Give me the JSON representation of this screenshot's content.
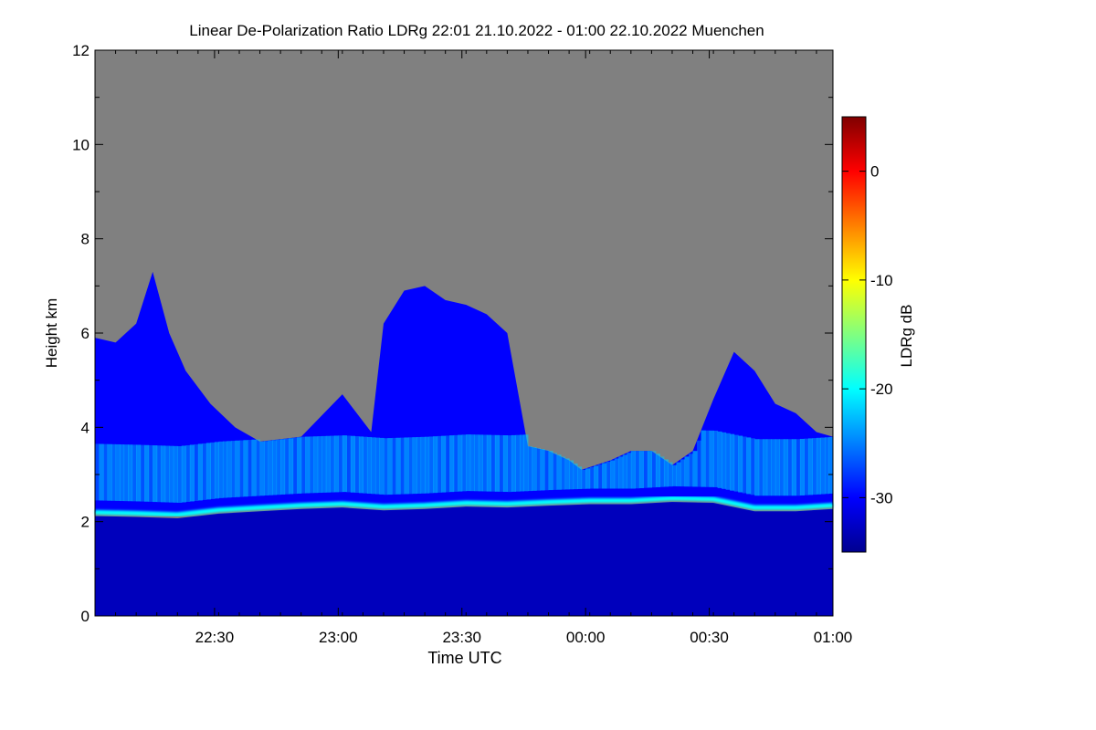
{
  "chart_data": {
    "type": "heatmap",
    "title": "Linear De-Polarization Ratio LDRg   22:01 21.10.2022 - 01:00 22.10.2022 Muenchen",
    "xlabel": "Time UTC",
    "ylabel": "Height km",
    "x_range_minutes": [
      0,
      179
    ],
    "x_start": "22:01",
    "x_ticks": [
      {
        "label": "22:30",
        "minute": 29
      },
      {
        "label": "23:00",
        "minute": 59
      },
      {
        "label": "23:30",
        "minute": 89
      },
      {
        "label": "00:00",
        "minute": 119
      },
      {
        "label": "00:30",
        "minute": 149
      },
      {
        "label": "01:00",
        "minute": 179
      }
    ],
    "y_range_km": [
      0,
      12
    ],
    "y_ticks": [
      0,
      2,
      4,
      6,
      8,
      10,
      12
    ],
    "colorbar": {
      "label": "LDRg dB",
      "range_db": [
        -35,
        5
      ],
      "ticks": [
        {
          "label": "0",
          "value": 0
        },
        {
          "label": "-10",
          "value": -10
        },
        {
          "label": "-20",
          "value": -20
        },
        {
          "label": "-30",
          "value": -30
        }
      ],
      "colormap": [
        "#00008f",
        "#0000ff",
        "#0080ff",
        "#00ffff",
        "#80ff80",
        "#ffff00",
        "#ff8000",
        "#ff0000",
        "#800000"
      ]
    },
    "no_data_color": "#808080",
    "features": {
      "melting_layer": {
        "description": "bright band of high LDR near cloud base",
        "ldr_db": -20,
        "points": [
          [
            0,
            2.2
          ],
          [
            10,
            2.18
          ],
          [
            20,
            2.15
          ],
          [
            30,
            2.25
          ],
          [
            40,
            2.3
          ],
          [
            50,
            2.35
          ],
          [
            60,
            2.38
          ],
          [
            70,
            2.32
          ],
          [
            80,
            2.35
          ],
          [
            90,
            2.4
          ],
          [
            100,
            2.38
          ],
          [
            110,
            2.42
          ],
          [
            120,
            2.45
          ],
          [
            130,
            2.45
          ],
          [
            140,
            2.5
          ],
          [
            150,
            2.48
          ],
          [
            160,
            2.3
          ],
          [
            170,
            2.3
          ],
          [
            179,
            2.35
          ]
        ]
      },
      "below_layer_ldr_db": -33,
      "cloud_top_km": [
        [
          0,
          5.9
        ],
        [
          5,
          5.8
        ],
        [
          10,
          6.2
        ],
        [
          14,
          7.3
        ],
        [
          18,
          6.0
        ],
        [
          22,
          5.2
        ],
        [
          28,
          4.5
        ],
        [
          34,
          4.0
        ],
        [
          40,
          3.7
        ],
        [
          50,
          3.8
        ],
        [
          60,
          4.7
        ],
        [
          67,
          3.9
        ],
        [
          70,
          6.2
        ],
        [
          75,
          6.9
        ],
        [
          80,
          7.0
        ],
        [
          85,
          6.7
        ],
        [
          90,
          6.6
        ],
        [
          95,
          6.4
        ],
        [
          100,
          6.0
        ],
        [
          105,
          3.6
        ],
        [
          110,
          3.5
        ],
        [
          115,
          3.3
        ],
        [
          118,
          3.1
        ],
        [
          125,
          3.3
        ],
        [
          130,
          3.5
        ],
        [
          135,
          3.5
        ],
        [
          140,
          3.2
        ],
        [
          145,
          3.5
        ],
        [
          150,
          4.6
        ],
        [
          155,
          5.6
        ],
        [
          160,
          5.2
        ],
        [
          165,
          4.5
        ],
        [
          170,
          4.3
        ],
        [
          175,
          3.9
        ],
        [
          179,
          3.8
        ]
      ],
      "cloud_ldr_db": -30,
      "mixed_layer_ldr_db": -22
    }
  }
}
